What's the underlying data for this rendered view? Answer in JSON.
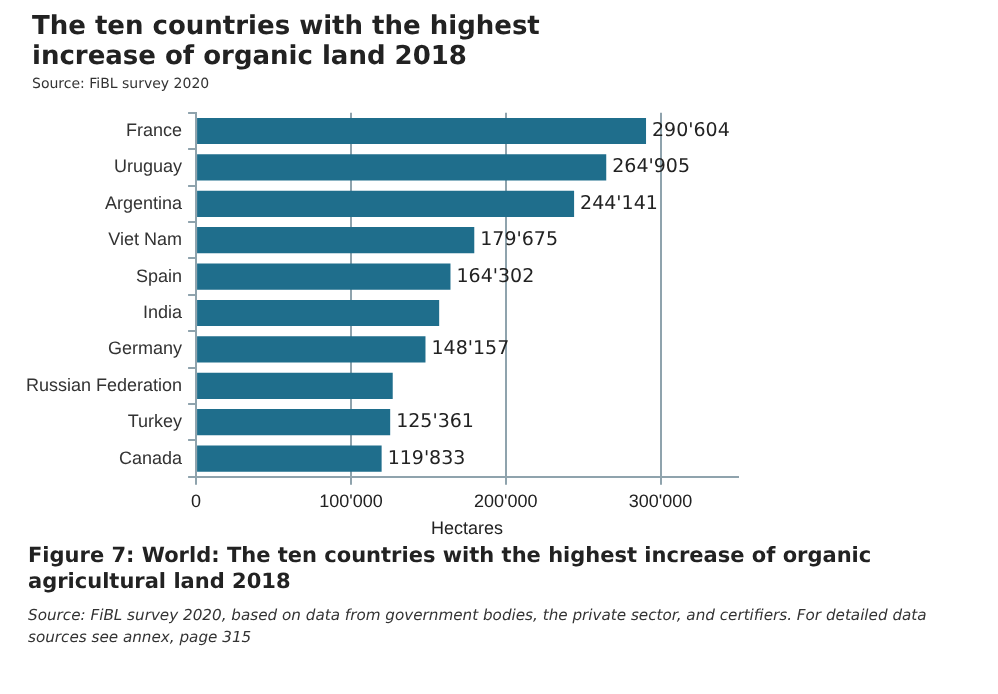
{
  "chart_data": {
    "type": "bar",
    "orientation": "horizontal",
    "title": "The ten countries with the highest increase of organic land 2018",
    "subtitle": "Source: FiBL survey 2020",
    "xlabel": "Hectares",
    "categories": [
      "France",
      "Uruguay",
      "Argentina",
      "Viet Nam",
      "Spain",
      "India",
      "Germany",
      "Russian Federation",
      "Turkey",
      "Canada"
    ],
    "values": [
      290604,
      264905,
      244141,
      179675,
      164302,
      157000,
      148157,
      127000,
      125361,
      119833
    ],
    "value_labels": [
      "290'604",
      "264'905",
      "244'141",
      "179'675",
      "164'302",
      null,
      "148'157",
      null,
      "125'361",
      "119'833"
    ],
    "color": "#1f6e8c",
    "xlim": [
      0,
      350000
    ],
    "xticks": [
      {
        "value": 0,
        "label": "0"
      },
      {
        "value": 100000,
        "label": "100'000"
      },
      {
        "value": 200000,
        "label": "200'000"
      },
      {
        "value": 300000,
        "label": "300'000"
      }
    ],
    "grid": "x",
    "legend": false,
    "annotations": [
      "Figure 7: World: The ten countries with the highest increase of organic agricultural land 2018",
      "Source: FiBL survey 2020, based on data from government bodies, the private sector, and certifiers. For detailed data sources see annex, page 315"
    ]
  }
}
